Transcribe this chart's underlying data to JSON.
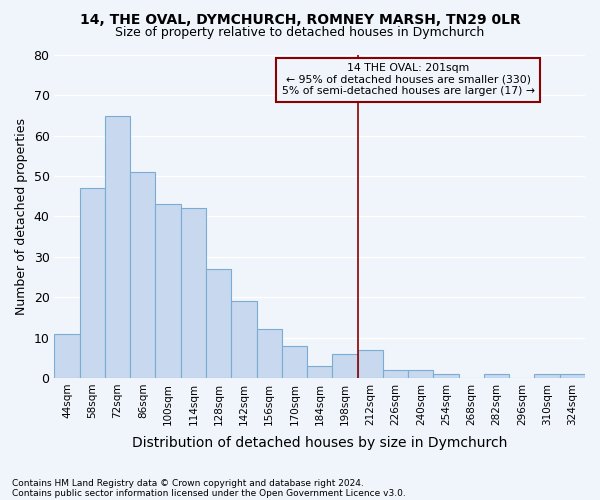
{
  "title": "14, THE OVAL, DYMCHURCH, ROMNEY MARSH, TN29 0LR",
  "subtitle": "Size of property relative to detached houses in Dymchurch",
  "xlabel": "Distribution of detached houses by size in Dymchurch",
  "ylabel": "Number of detached properties",
  "bar_color": "#c8d8ee",
  "bar_edge_color": "#7aadd4",
  "categories": [
    "44sqm",
    "58sqm",
    "72sqm",
    "86sqm",
    "100sqm",
    "114sqm",
    "128sqm",
    "142sqm",
    "156sqm",
    "170sqm",
    "184sqm",
    "198sqm",
    "212sqm",
    "226sqm",
    "240sqm",
    "254sqm",
    "268sqm",
    "282sqm",
    "296sqm",
    "310sqm",
    "324sqm"
  ],
  "values": [
    11,
    47,
    65,
    51,
    43,
    42,
    27,
    19,
    12,
    8,
    3,
    6,
    7,
    2,
    2,
    1,
    0,
    1,
    0,
    1,
    1
  ],
  "ylim": [
    0,
    80
  ],
  "yticks": [
    0,
    10,
    20,
    30,
    40,
    50,
    60,
    70,
    80
  ],
  "vline_x": 11.5,
  "vline_color": "#8b0000",
  "annotation_text": "14 THE OVAL: 201sqm\n← 95% of detached houses are smaller (330)\n5% of semi-detached houses are larger (17) →",
  "annotation_box_color": "#8b0000",
  "footnote1": "Contains HM Land Registry data © Crown copyright and database right 2024.",
  "footnote2": "Contains public sector information licensed under the Open Government Licence v3.0.",
  "bg_color": "#f0f4fb",
  "grid_color": "#ffffff"
}
